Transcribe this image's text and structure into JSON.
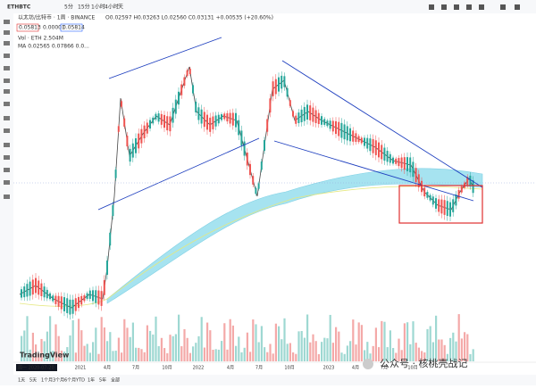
{
  "toolbar": {
    "symbol": "ETHBTC",
    "intervals": [
      "5分",
      "15分",
      "1小时",
      "4小时",
      "天"
    ]
  },
  "legend": {
    "name": "以太坊/比特币 · 1周 · BINANCE",
    "ohlc": "O0.02597 H0.03263 L0.02560 C0.03131 +0.00535 (+20.60%)",
    "bid": "0.05813",
    "spread": "0.00001",
    "ask": "0.05814",
    "volume": "Vol · ETH  2.504M",
    "ma": "MA  0.02565  0.07866  0.0..."
  },
  "time_axis": [
    "2021",
    "4月",
    "7月",
    "10月",
    "2022",
    "4月",
    "7月",
    "10月",
    "2023",
    "4月",
    "7月",
    "10月"
  ],
  "cursor_date": "周一  2020-07-20",
  "logo": "TradingView",
  "watermark": "公众号 · 核桃壳战记",
  "ranges": [
    "1天",
    "5天",
    "1个月",
    "3个月",
    "6个月",
    "YTD",
    "1年",
    "5年",
    "全部"
  ]
}
